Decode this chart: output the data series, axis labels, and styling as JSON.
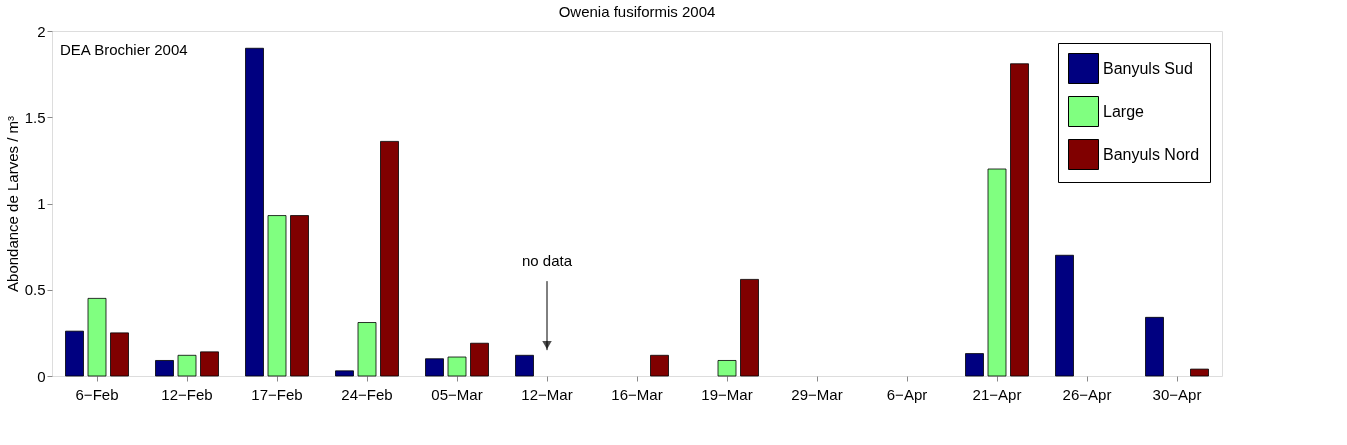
{
  "chart_data": {
    "type": "bar",
    "title": "Owenia fusiformis 2004",
    "ylabel": "Abondance de Larves / m³",
    "categories": [
      "6−Feb",
      "12−Feb",
      "17−Feb",
      "24−Feb",
      "05−Mar",
      "12−Mar",
      "16−Mar",
      "19−Mar",
      "29−Mar",
      "6−Apr",
      "21−Apr",
      "26−Apr",
      "30−Apr"
    ],
    "series": [
      {
        "name": "Banyuls Sud",
        "color": "#000080",
        "values": [
          0.26,
          0.09,
          1.9,
          0.03,
          0.1,
          0.12,
          null,
          null,
          null,
          null,
          0.13,
          0.7,
          0.34
        ]
      },
      {
        "name": "Large",
        "color": "#80ff80",
        "values": [
          0.45,
          0.12,
          0.93,
          0.31,
          0.11,
          null,
          null,
          0.09,
          null,
          null,
          1.2,
          null,
          null
        ]
      },
      {
        "name": "Banyuls Nord",
        "color": "#800000",
        "values": [
          0.25,
          0.14,
          0.93,
          1.36,
          0.19,
          null,
          0.12,
          0.56,
          null,
          null,
          1.81,
          null,
          0.04
        ]
      }
    ],
    "ylim": [
      0,
      2
    ],
    "yticks": [
      0,
      0.5,
      1,
      1.5,
      2
    ],
    "grid": false,
    "legend": "top right",
    "annotations": [
      "DEA Brochier 2004",
      "no data"
    ]
  }
}
